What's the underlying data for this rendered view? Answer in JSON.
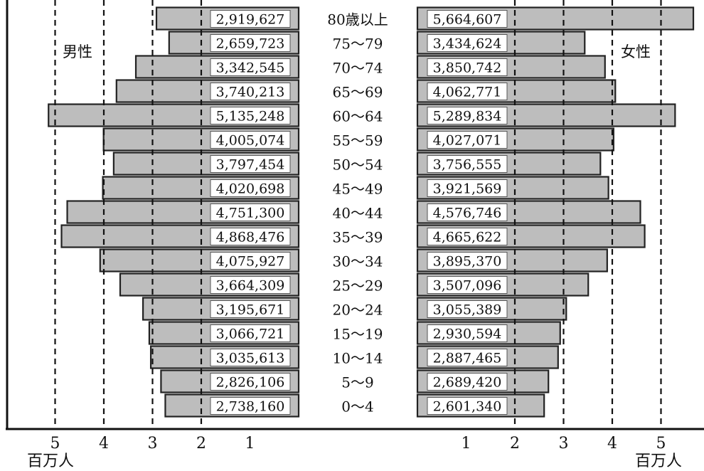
{
  "chart_data": {
    "type": "bar",
    "subtype": "population-pyramid",
    "categories": [
      "80歳以上",
      "75〜79",
      "70〜74",
      "65〜69",
      "60〜64",
      "55〜59",
      "50〜54",
      "45〜49",
      "40〜44",
      "35〜39",
      "30〜34",
      "25〜29",
      "20〜24",
      "15〜19",
      "10〜14",
      "5〜9",
      "0〜4"
    ],
    "series": [
      {
        "name": "男性",
        "color": "#bdbdbd",
        "values": [
          2919627,
          2659723,
          3342545,
          3740213,
          5135248,
          4005074,
          3797454,
          4020698,
          4751300,
          4868476,
          4075927,
          3664309,
          3195671,
          3066721,
          3035613,
          2826106,
          2738160
        ]
      },
      {
        "name": "女性",
        "color": "#bdbdbd",
        "values": [
          5664607,
          3434624,
          3850742,
          4062771,
          5289834,
          4027071,
          3756555,
          3921569,
          4576746,
          4665622,
          3895370,
          3507096,
          3055389,
          2930594,
          2887465,
          2689420,
          2601340
        ]
      }
    ],
    "value_labels": {
      "male": [
        "2,919,627",
        "2,659,723",
        "3,342,545",
        "3,740,213",
        "5,135,248",
        "4,005,074",
        "3,797,454",
        "4,020,698",
        "4,751,300",
        "4,868,476",
        "4,075,927",
        "3,664,309",
        "3,195,671",
        "3,066,721",
        "3,035,613",
        "2,826,106",
        "2,738,160"
      ],
      "female": [
        "5,664,607",
        "3,434,624",
        "3,850,742",
        "4,062,771",
        "5,289,834",
        "4,027,071",
        "3,756,555",
        "3,921,569",
        "4,576,746",
        "4,665,622",
        "3,895,370",
        "3,507,096",
        "3,055,389",
        "2,930,594",
        "2,887,465",
        "2,689,420",
        "2,601,340"
      ]
    },
    "xticks": [
      "1",
      "2",
      "3",
      "4",
      "5"
    ],
    "xunit": "百万人",
    "gridlines_millions": [
      2,
      3,
      4,
      5
    ],
    "xlim_millions": [
      0,
      5.6
    ]
  }
}
